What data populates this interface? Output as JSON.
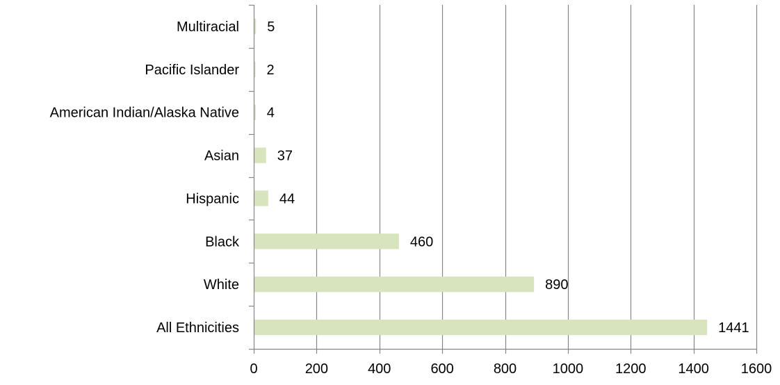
{
  "chart_data": {
    "type": "bar",
    "orientation": "horizontal",
    "categories": [
      "Multiracial",
      "Pacific Islander",
      "American Indian/Alaska Native",
      "Asian",
      "Hispanic",
      "Black",
      "White",
      "All Ethnicities"
    ],
    "values": [
      5,
      2,
      4,
      37,
      44,
      460,
      890,
      1441
    ],
    "xlim": [
      0,
      1600
    ],
    "xticks": [
      0,
      200,
      400,
      600,
      800,
      1000,
      1200,
      1400,
      1600
    ],
    "data_labels": [
      "5",
      "2",
      "4",
      "37",
      "44",
      "460",
      "890",
      "1441"
    ],
    "title": "",
    "xlabel": "",
    "ylabel": "",
    "grid": "vertical",
    "legend": "none",
    "bar_color": "#d7e4bd",
    "grid_color": "#868686",
    "axis_color": "#868686"
  }
}
